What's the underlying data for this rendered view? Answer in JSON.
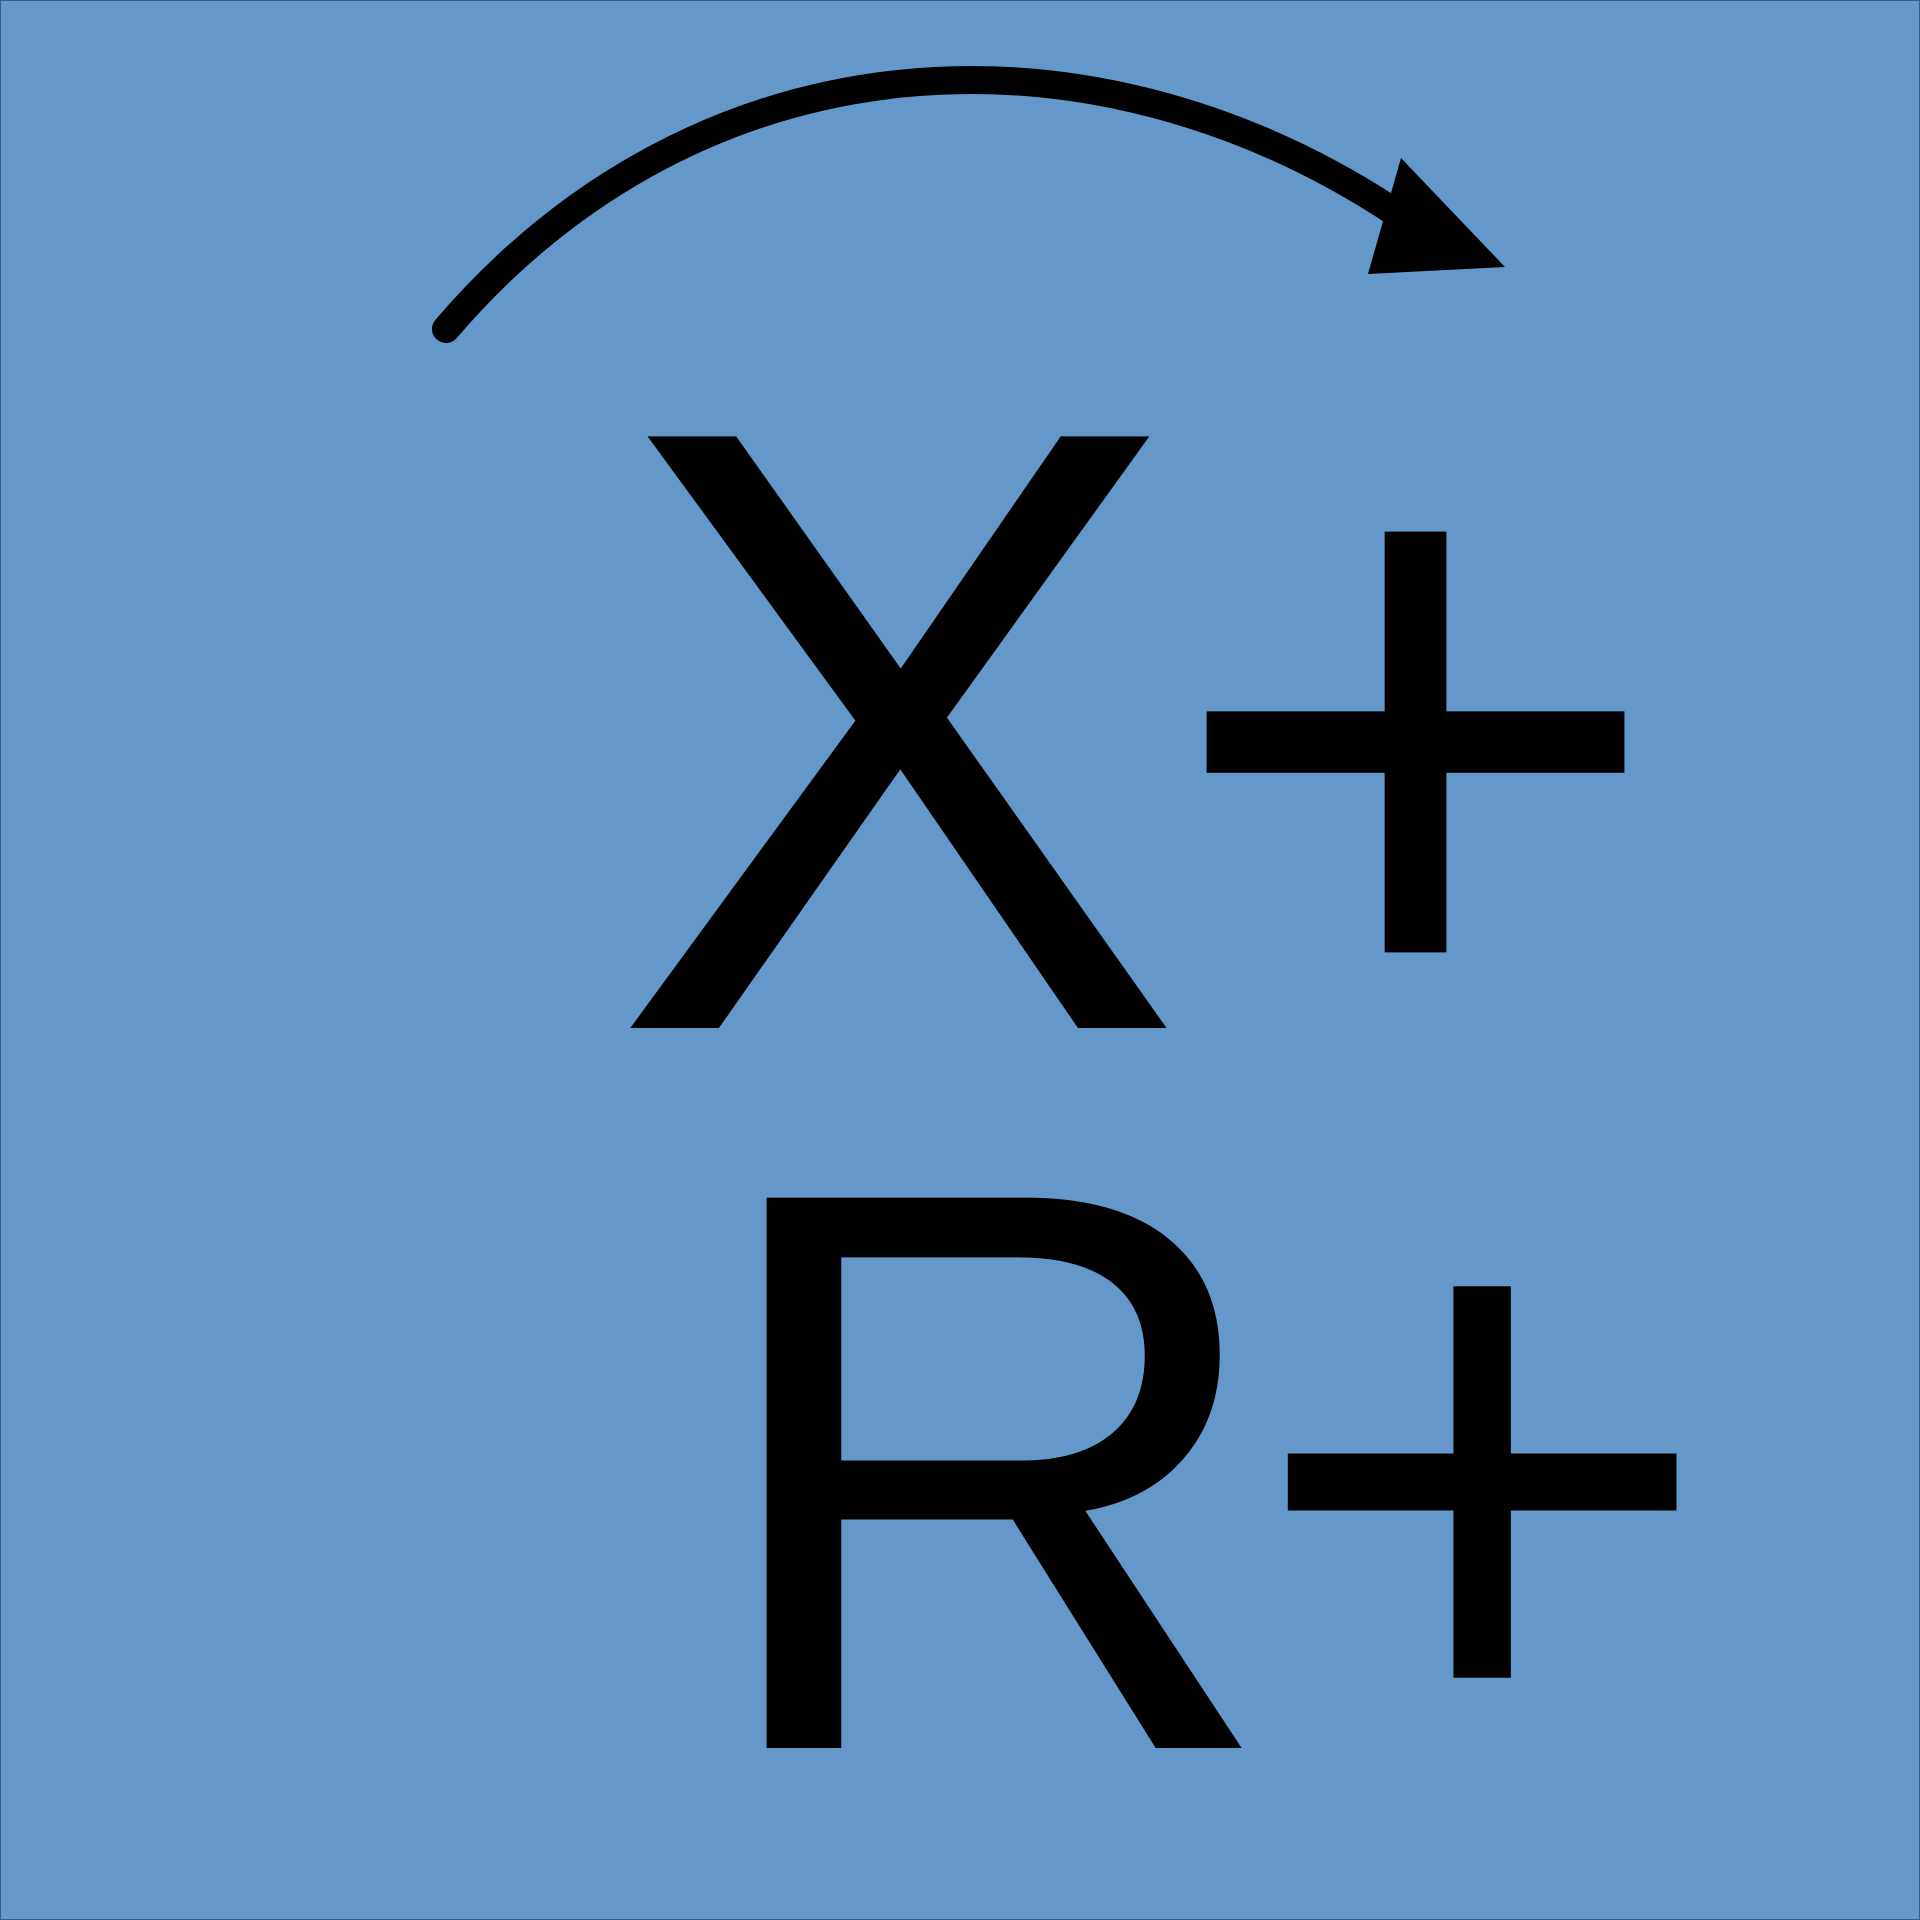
{
  "colors": {
    "background": "#6498cb",
    "foreground": "#000000"
  },
  "icon": {
    "arrow": "curved-arrow-clockwise-icon"
  },
  "labels": {
    "top": "X+",
    "bottom": "R+"
  }
}
